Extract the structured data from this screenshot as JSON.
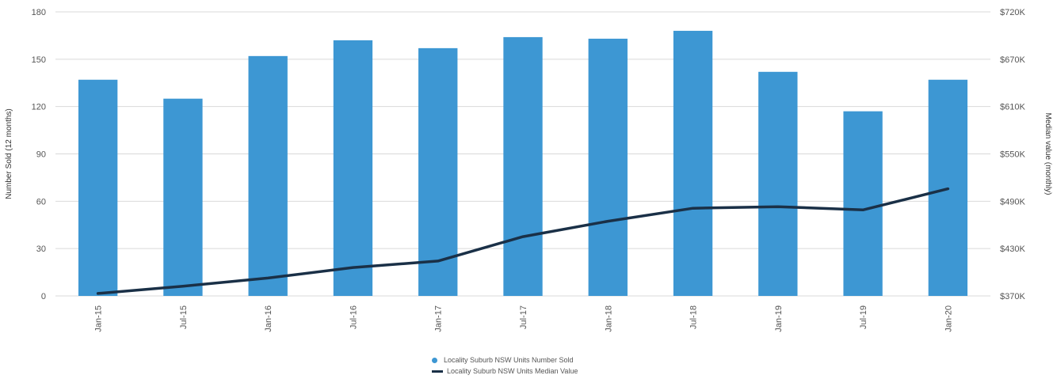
{
  "chart_data": {
    "type": "bar",
    "categories": [
      "Jan-15",
      "Jul-15",
      "Jan-16",
      "Jul-16",
      "Jan-17",
      "Jul-17",
      "Jan-18",
      "Jul-18",
      "Jan-19",
      "Jul-19",
      "Jan-20"
    ],
    "series": [
      {
        "name": "Locality Suburb NSW Units Number Sold",
        "type": "bar",
        "axis": "left",
        "color": "#3d97d3",
        "values": [
          137,
          125,
          152,
          162,
          157,
          164,
          163,
          168,
          142,
          117,
          137
        ]
      },
      {
        "name": "Locality Suburb NSW Units Median Value",
        "type": "line",
        "axis": "right",
        "color": "#1a3047",
        "values": [
          373000,
          382000,
          392000,
          405000,
          413000,
          443000,
          462000,
          478000,
          480000,
          476000,
          502000
        ]
      }
    ],
    "ylabel_left": "Number Sold (12 months)",
    "ylabel_right": "Median value (monthly)",
    "ylim_left": [
      0,
      180
    ],
    "ylim_right": [
      370000,
      720000
    ],
    "yticks_left": [
      "0",
      "30",
      "60",
      "90",
      "120",
      "150",
      "180"
    ],
    "yticks_right": [
      "$370K",
      "$430K",
      "$490K",
      "$550K",
      "$610K",
      "$670K",
      "$720K"
    ],
    "grid": true,
    "legend_position": "bottom-center"
  },
  "legend": {
    "bar_label": "Locality Suburb NSW Units Number Sold",
    "line_label": "Locality Suburb NSW Units Median Value"
  }
}
